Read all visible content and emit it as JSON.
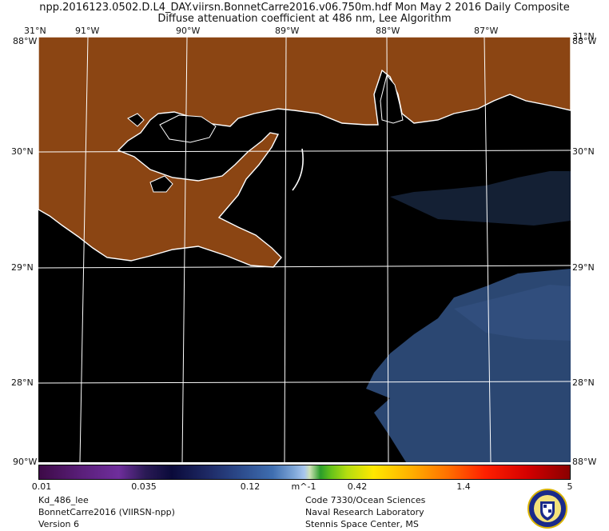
{
  "header": {
    "line1": "npp.2016123.0502.D.L4_DAY.viirsn.BonnetCarre2016.v06.750m.hdf    Mon May  2 2016 Daily Composite",
    "line2": "Diffuse attenuation coefficient at 486 nm, Lee Algorithm"
  },
  "map": {
    "lon_labels": [
      "91°W",
      "90°W",
      "89°W",
      "88°W",
      "87°W"
    ],
    "lat_labels": [
      "30°N",
      "29°N",
      "28°N"
    ],
    "corner_labels": {
      "top_left": "31°N",
      "top_left_2": "88°W",
      "top_right": "31°N",
      "top_right_2": "88°W",
      "bottom_left": "90°W",
      "bottom_right": "88°W"
    },
    "colors": {
      "land": "#8b4513",
      "water": "#000000",
      "high_kd": "#2b4772",
      "coast": "#ffffff",
      "grid": "#ffffff"
    }
  },
  "colorbar": {
    "ticks": [
      "0.01",
      "0.035",
      "0.12",
      "0.42",
      "1.4",
      "5"
    ],
    "unit": "m^-1",
    "scale": "log"
  },
  "footer": {
    "left": [
      "Kd_486_lee",
      "BonnetCarre2016 (VIIRSN-npp)",
      "Version 6"
    ],
    "right": [
      "Code 7330/Ocean Sciences",
      "Naval Research Laboratory",
      "Stennis Space Center, MS"
    ]
  }
}
